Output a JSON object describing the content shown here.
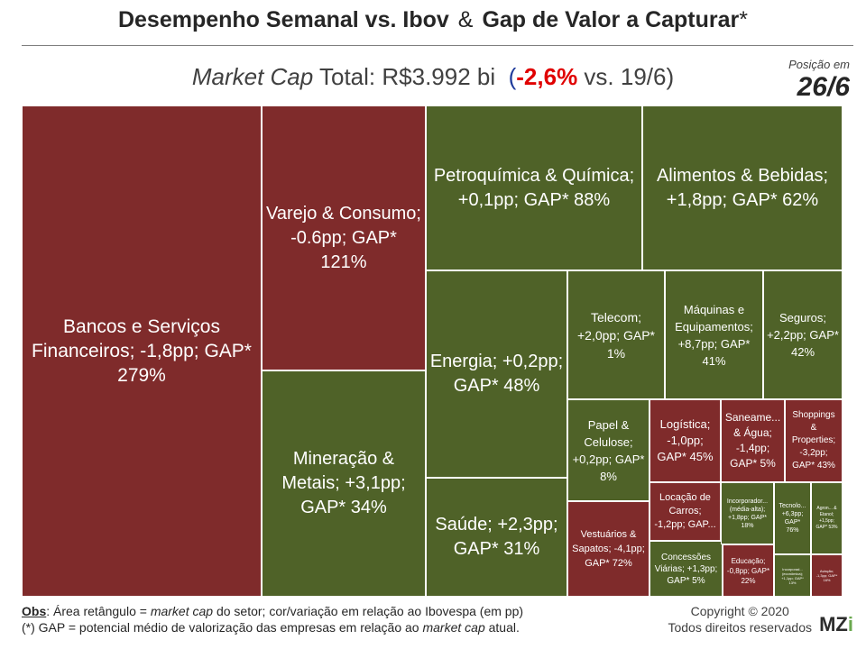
{
  "title": {
    "part1": "Desempenho Semanal vs. Ibov",
    "amp": "&",
    "part2": "Gap de Valor a Capturar",
    "star": "*"
  },
  "subtitle": {
    "label_italic": "Market Cap",
    "label_rest": "Total: R$3.992 bi",
    "open": "(",
    "change": "-2,6%",
    "compare": "vs. 19/6)"
  },
  "position": {
    "label": "Posição em",
    "date": "26/6"
  },
  "colors": {
    "positive": "#4f6228",
    "negative": "#7f2b2b"
  },
  "chart_data": {
    "type": "treemap",
    "title": "Desempenho Semanal vs. Ibov & Gap de Valor a Capturar*",
    "sectors": [
      {
        "label": "Bancos e Serviços Financeiros; -1,8pp; GAP* 279%",
        "variation_pp": -1.8,
        "gap_pct": 279
      },
      {
        "label": "Varejo & Consumo; -0.6pp; GAP* 121%",
        "variation_pp": -0.6,
        "gap_pct": 121
      },
      {
        "label": "Mineração & Metais; +3,1pp; GAP* 34%",
        "variation_pp": 3.1,
        "gap_pct": 34
      },
      {
        "label": "Petroquímica & Química; +0,1pp; GAP* 88%",
        "variation_pp": 0.1,
        "gap_pct": 88
      },
      {
        "label": "Alimentos & Bebidas; +1,8pp; GAP* 62%",
        "variation_pp": 1.8,
        "gap_pct": 62
      },
      {
        "label": "Energia; +0,2pp; GAP* 48%",
        "variation_pp": 0.2,
        "gap_pct": 48
      },
      {
        "label": "Saúde; +2,3pp; GAP* 31%",
        "variation_pp": 2.3,
        "gap_pct": 31
      },
      {
        "label": "Telecom; +2,0pp; GAP* 1%",
        "variation_pp": 2.0,
        "gap_pct": 1
      },
      {
        "label": "Máquinas e Equipamentos; +8,7pp; GAP* 41%",
        "variation_pp": 8.7,
        "gap_pct": 41
      },
      {
        "label": "Seguros; +2,2pp; GAP* 42%",
        "variation_pp": 2.2,
        "gap_pct": 42
      },
      {
        "label": "Papel & Celulose; +0,2pp; GAP* 8%",
        "variation_pp": 0.2,
        "gap_pct": 8
      },
      {
        "label": "Logística; -1,0pp; GAP* 45%",
        "variation_pp": -1.0,
        "gap_pct": 45
      },
      {
        "label": "Saneame... & Água; -1,4pp; GAP* 5%",
        "variation_pp": -1.4,
        "gap_pct": 5
      },
      {
        "label": "Shoppings & Properties; -3,2pp; GAP* 43%",
        "variation_pp": -3.2,
        "gap_pct": 43
      },
      {
        "label": "Vestuários & Sapatos; -4,1pp; GAP* 72%",
        "variation_pp": -4.1,
        "gap_pct": 72
      },
      {
        "label": "Locação de Carros; -1,2pp; GAP...",
        "variation_pp": -1.2,
        "gap_pct": null
      },
      {
        "label": "Concessões Viárias; +1,3pp; GAP* 5%",
        "variation_pp": 1.3,
        "gap_pct": 5
      },
      {
        "label": "Incorporador... (média-alta); +1,8pp; GAP* 18%",
        "variation_pp": 1.8,
        "gap_pct": 18
      },
      {
        "label": "Educação; -0,8pp; GAP* 22%",
        "variation_pp": -0.8,
        "gap_pct": 22
      },
      {
        "label": "Tecnolo... +6,3pp; GAP* 76%",
        "variation_pp": 6.3,
        "gap_pct": 76
      },
      {
        "label": "Agron... & Etanol; +1,5pp; GAP* 53%",
        "variation_pp": 1.5,
        "gap_pct": 53
      },
      {
        "label": "Incorporad... (econômica); +1,1pp; GAP* 13%",
        "variation_pp": 1.1,
        "gap_pct": 13
      },
      {
        "label": "Aviação; -1,3pp; GAP* 16%",
        "variation_pp": -1.3,
        "gap_pct": 16
      }
    ]
  },
  "footer": {
    "obs_label": "Obs",
    "obs_text_a": ": Área retângulo =",
    "obs_mc": "market cap",
    "obs_text_b": "do setor; cor/variação em relação ao Ibovespa (em pp)",
    "gap_text_a": "(*) GAP = potencial médio de valorização das empresas em relação ao",
    "gap_mc": "market cap",
    "gap_text_b": "atual.",
    "copyright": "Copyright © 2020",
    "rights": "Todos direitos reservados",
    "logo_main": "MZ",
    "logo_i": "i"
  }
}
